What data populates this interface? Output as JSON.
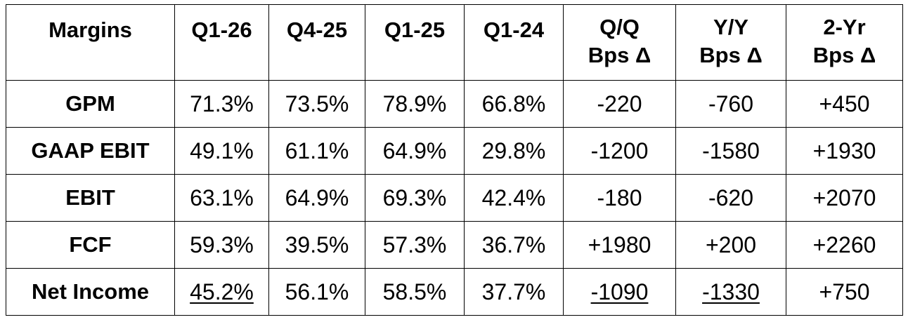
{
  "table": {
    "headers": [
      {
        "line1": "Margins",
        "line2": ""
      },
      {
        "line1": "Q1-26",
        "line2": ""
      },
      {
        "line1": "Q4-25",
        "line2": ""
      },
      {
        "line1": "Q1-25",
        "line2": ""
      },
      {
        "line1": "Q1-24",
        "line2": ""
      },
      {
        "line1": "Q/Q",
        "line2": "Bps Δ"
      },
      {
        "line1": "Y/Y",
        "line2": "Bps Δ"
      },
      {
        "line1": "2-Yr",
        "line2": "Bps Δ"
      }
    ],
    "rows": [
      {
        "label": "GPM",
        "cells": [
          "71.3%",
          "73.5%",
          "78.9%",
          "66.8%",
          "-220",
          "-760",
          "+450"
        ]
      },
      {
        "label": "GAAP EBIT",
        "cells": [
          "49.1%",
          "61.1%",
          "64.9%",
          "29.8%",
          "-1200",
          "-1580",
          "+1930"
        ]
      },
      {
        "label": "EBIT",
        "cells": [
          "63.1%",
          "64.9%",
          "69.3%",
          "42.4%",
          "-180",
          "-620",
          "+2070"
        ]
      },
      {
        "label": "FCF",
        "cells": [
          "59.3%",
          "39.5%",
          "57.3%",
          "36.7%",
          "+1980",
          "+200",
          "+2260"
        ]
      },
      {
        "label": "Net Income",
        "cells": [
          "45.2%",
          "56.1%",
          "58.5%",
          "37.7%",
          "-1090",
          "-1330",
          "+750"
        ]
      }
    ]
  }
}
